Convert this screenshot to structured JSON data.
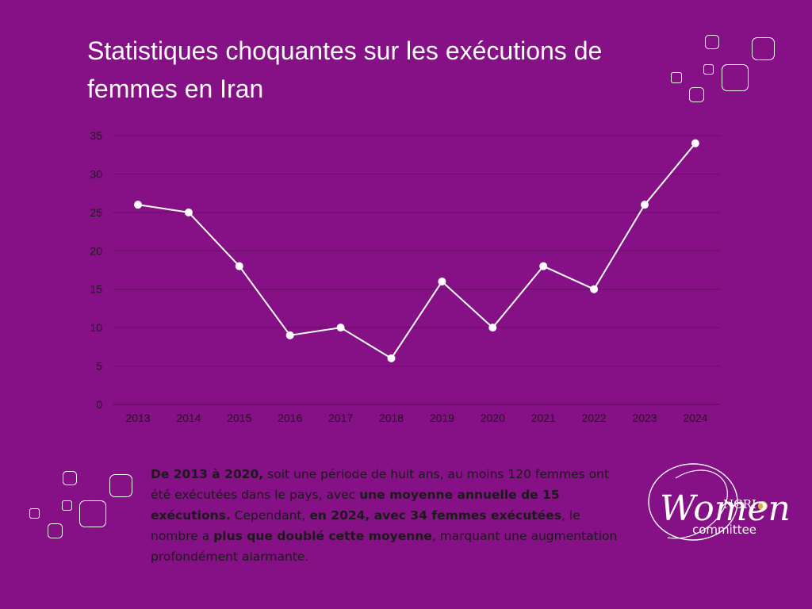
{
  "title": "Statistiques choquantes sur les exécutions de femmes en Iran",
  "colors": {
    "background": "#861085",
    "line": "#ffffff",
    "grid": "#6b0d6a",
    "text": "#1a1a1a"
  },
  "chart_data": {
    "type": "line",
    "categories": [
      "2013",
      "2014",
      "2015",
      "2016",
      "2017",
      "2018",
      "2019",
      "2020",
      "2021",
      "2022",
      "2023",
      "2024"
    ],
    "values": [
      26,
      25,
      18,
      9,
      10,
      6,
      16,
      10,
      18,
      15,
      26,
      34
    ],
    "ylim": [
      0,
      35
    ],
    "yticks": [
      0,
      5,
      10,
      15,
      20,
      25,
      30,
      35
    ],
    "grid": true,
    "markers": true
  },
  "caption": {
    "p1": "De 2013 à 2020,",
    "p2": " soit une période de huit ans, au moins 120 femmes ont été exécutées dans le pays, avec ",
    "p3": "une moyenne annuelle de 15 exécutions.",
    "p4": " Cependant, ",
    "p5": "en 2024, avec 34 femmes exécutées",
    "p6": ", le nombre a ",
    "p7": "plus que doublé cette moyenne",
    "p8": ", marquant une augmentation profondément alarmante."
  },
  "logo": {
    "top": "NCRI",
    "main": "Women",
    "sub": "committee"
  }
}
